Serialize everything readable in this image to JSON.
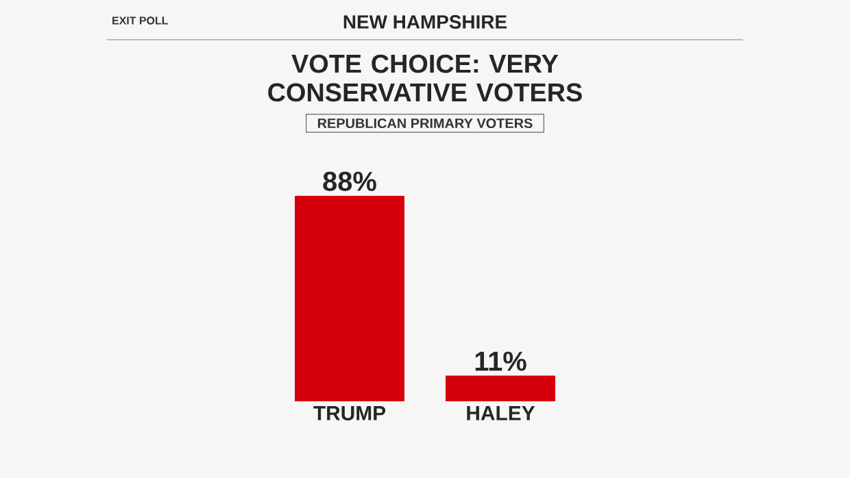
{
  "chart_data": {
    "type": "bar",
    "title": "VOTE CHOICE: VERY CONSERVATIVE VOTERS",
    "subtitle": "REPUBLICAN PRIMARY VOTERS",
    "annotations": [
      "EXIT POLL",
      "NEW HAMPSHIRE"
    ],
    "categories": [
      "TRUMP",
      "HALEY"
    ],
    "values": [
      88,
      11
    ],
    "value_labels": [
      "88%",
      "11%"
    ],
    "colors": [
      "#d6000c",
      "#d6000c"
    ]
  }
}
